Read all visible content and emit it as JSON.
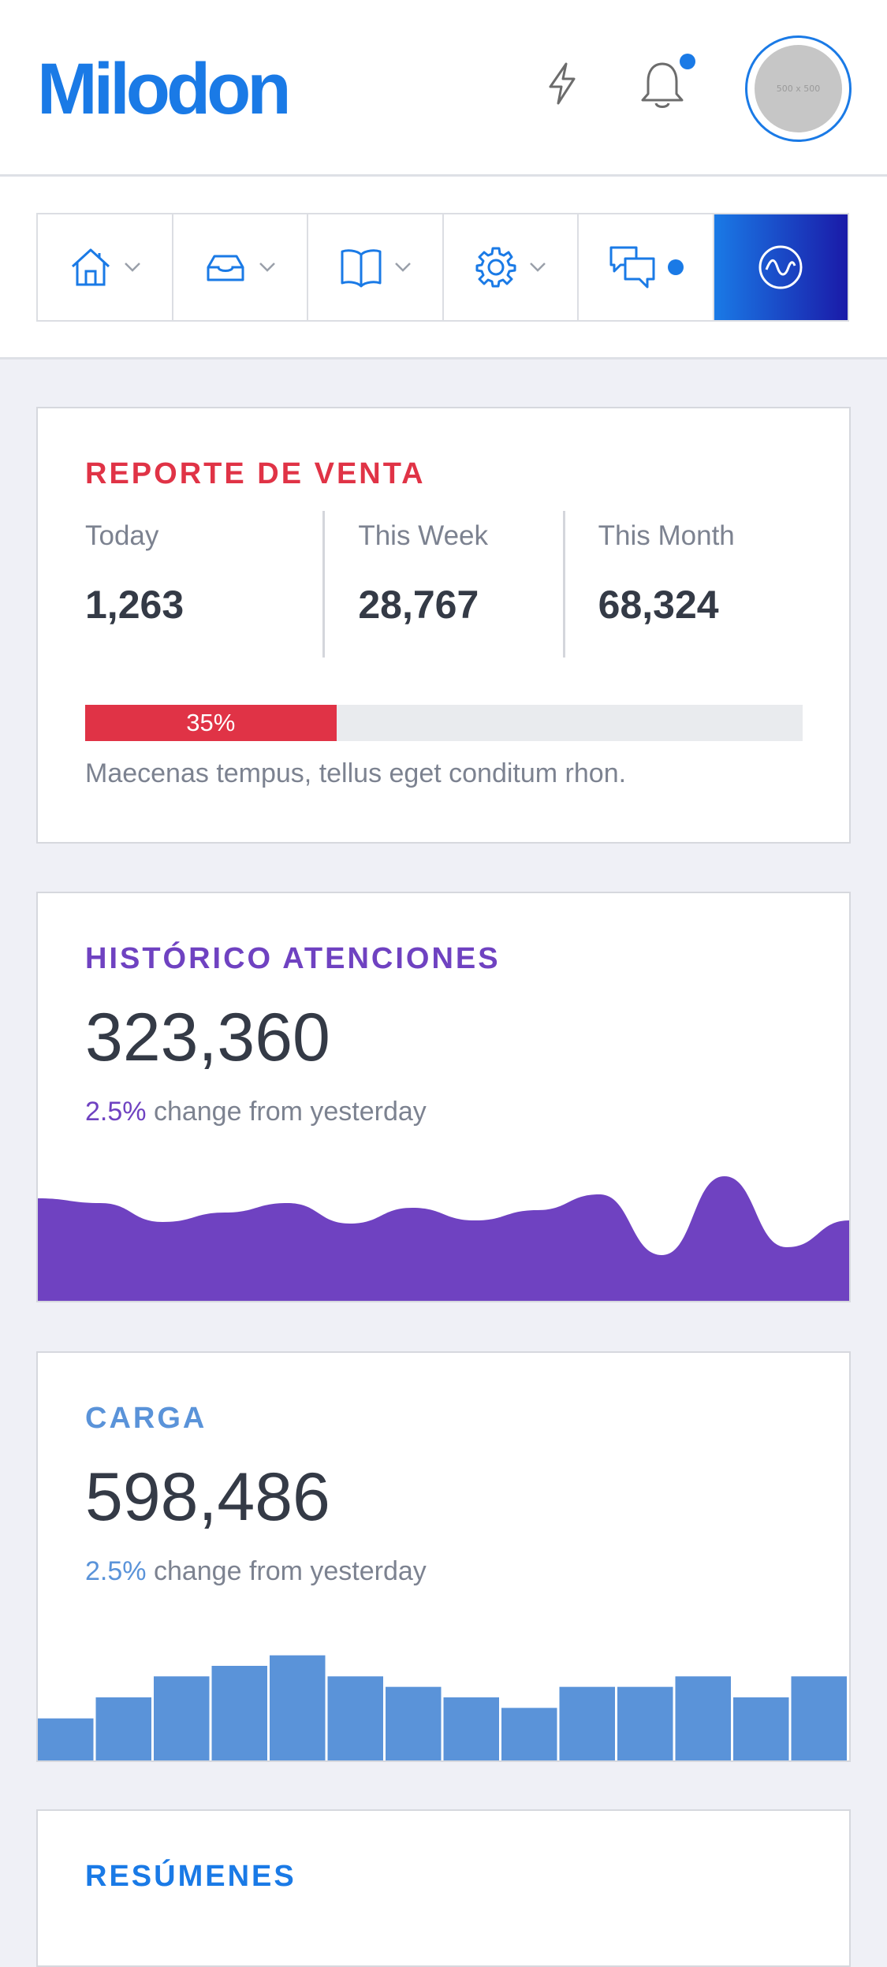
{
  "header": {
    "logo": "Milodon",
    "avatar_placeholder": "500 x 500"
  },
  "nav": {
    "items": [
      {
        "icon": "home-icon",
        "has_dropdown": true
      },
      {
        "icon": "inbox-icon",
        "has_dropdown": true
      },
      {
        "icon": "book-icon",
        "has_dropdown": true
      },
      {
        "icon": "gear-icon",
        "has_dropdown": true
      },
      {
        "icon": "chat-icon",
        "has_notification": true
      },
      {
        "icon": "wave-icon",
        "active": true
      }
    ]
  },
  "sales_report": {
    "title": "REPORTE DE VENTA",
    "stats": [
      {
        "label": "Today",
        "value": "1,263"
      },
      {
        "label": "This Week",
        "value": "28,767"
      },
      {
        "label": "This Month",
        "value": "68,324"
      }
    ],
    "progress": {
      "label": "35%",
      "value": 0.35
    },
    "description": "Maecenas tempus, tellus eget conditum rhon."
  },
  "history": {
    "title": "HISTÓRICO ATENCIONES",
    "value": "323,360",
    "change_pct": "2.5%",
    "change_text": " change from yesterday"
  },
  "load": {
    "title": "CARGA",
    "value": "598,486",
    "change_pct": "2.5%",
    "change_text": " change from yesterday"
  },
  "summaries": {
    "title": "RESÚMENES"
  },
  "colors": {
    "brand": "#1a7ae6",
    "sales": "#e03346",
    "history": "#6f42c1",
    "load": "#5a93d9",
    "summaries": "#1a7ae6"
  },
  "chart_data": [
    {
      "type": "area",
      "x": [
        0,
        1,
        2,
        3,
        4,
        5,
        6,
        7,
        8,
        9,
        10,
        11,
        12,
        13
      ],
      "values": [
        130,
        124,
        100,
        112,
        124,
        98,
        118,
        102,
        115,
        135,
        58,
        158,
        68,
        102
      ],
      "ylim": [
        0,
        180
      ]
    },
    {
      "type": "bar",
      "values": [
        4,
        6,
        8,
        9,
        10,
        8,
        7,
        6,
        5,
        7,
        7,
        8,
        6,
        8
      ],
      "ylim": [
        0,
        12
      ]
    }
  ]
}
